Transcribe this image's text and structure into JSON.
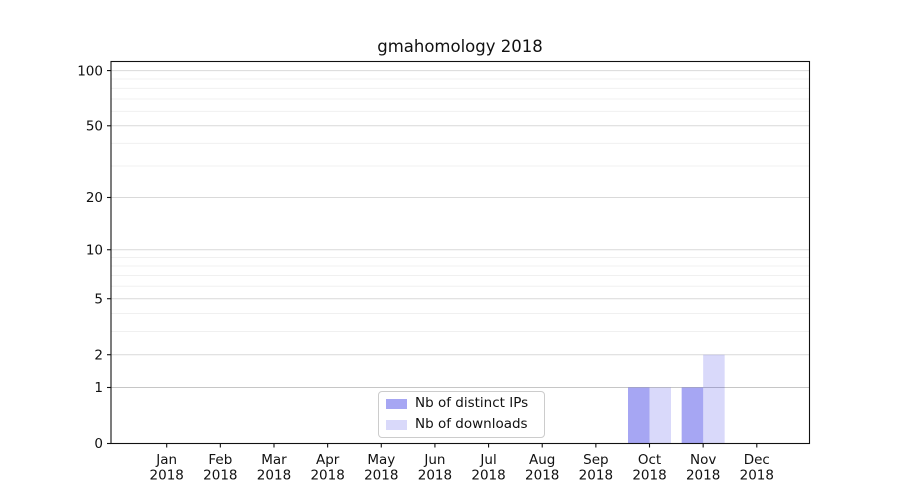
{
  "chart_data": {
    "type": "bar",
    "title": "gmahomology 2018",
    "categories": [
      "Jan 2018",
      "Feb 2018",
      "Mar 2018",
      "Apr 2018",
      "May 2018",
      "Jun 2018",
      "Jul 2018",
      "Aug 2018",
      "Sep 2018",
      "Oct 2018",
      "Nov 2018",
      "Dec 2018"
    ],
    "series": [
      {
        "name": "Nb of distinct IPs",
        "color": "rgba(0,0,221,0.35)",
        "values": [
          0,
          0,
          0,
          0,
          0,
          0,
          0,
          0,
          0,
          1,
          1,
          0
        ]
      },
      {
        "name": "Nb of downloads",
        "color": "rgba(0,0,221,0.15)",
        "values": [
          0,
          0,
          0,
          0,
          0,
          0,
          0,
          0,
          0,
          1,
          2,
          0
        ]
      }
    ],
    "yscale": "log1p",
    "ylim": [
      0,
      112
    ],
    "y_major_ticks": [
      0,
      1,
      2,
      5,
      10,
      20,
      50,
      100
    ],
    "y_minor_gridlines": [
      3,
      4,
      6,
      7,
      8,
      9,
      30,
      40,
      60,
      70,
      80,
      90
    ],
    "grid": "both",
    "legend": {
      "position": "lower center"
    },
    "colors": {
      "background": "#ffffff",
      "axis": "#111111",
      "text": "#111111",
      "major_grid": "#d9d9d9",
      "unit_grid": "#c6c6c6",
      "minor_grid": "#f0f0f0",
      "legend_border": "#cccccc"
    }
  }
}
